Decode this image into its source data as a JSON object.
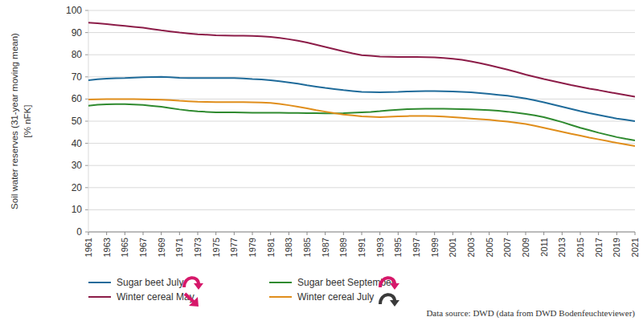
{
  "chart_data": {
    "type": "line",
    "ylabel": [
      "Soil water reserves (31-year moving mean)",
      "[% nFK]"
    ],
    "annotation": "Data source: DWD (data from DWD Bodenfeuchteviewer)",
    "x": [
      1961,
      1962,
      1963,
      1964,
      1965,
      1966,
      1967,
      1968,
      1969,
      1970,
      1971,
      1972,
      1973,
      1974,
      1975,
      1976,
      1977,
      1978,
      1979,
      1980,
      1981,
      1982,
      1983,
      1984,
      1985,
      1986,
      1987,
      1988,
      1989,
      1990,
      1991,
      1992,
      1993,
      1994,
      1995,
      1996,
      1997,
      1998,
      1999,
      2000,
      2001,
      2002,
      2003,
      2004,
      2005,
      2006,
      2007,
      2008,
      2009,
      2010,
      2011,
      2012,
      2013,
      2014,
      2015,
      2016,
      2017,
      2018,
      2019,
      2020,
      2021
    ],
    "xlim": [
      1961,
      2021
    ],
    "xticks": [
      1961,
      1963,
      1965,
      1967,
      1969,
      1971,
      1973,
      1975,
      1977,
      1979,
      1981,
      1983,
      1985,
      1987,
      1989,
      1991,
      1993,
      1995,
      1997,
      1999,
      2001,
      2003,
      2005,
      2007,
      2009,
      2011,
      2013,
      2015,
      2017,
      2019,
      2021
    ],
    "ylim": [
      0,
      100
    ],
    "yticks": [
      0,
      10,
      20,
      30,
      40,
      50,
      60,
      70,
      80,
      90,
      100
    ],
    "grid": true,
    "legend": "bottom",
    "series": [
      {
        "name": "Sugar beet July",
        "color": "#1f6b9a",
        "values": [
          68.5,
          68.9,
          69.2,
          69.4,
          69.5,
          69.7,
          69.8,
          69.9,
          70.0,
          69.8,
          69.6,
          69.5,
          69.5,
          69.5,
          69.5,
          69.5,
          69.5,
          69.3,
          69.0,
          68.8,
          68.5,
          68.0,
          67.5,
          66.9,
          66.2,
          65.6,
          65.0,
          64.5,
          64.0,
          63.6,
          63.2,
          63.1,
          63.0,
          63.1,
          63.2,
          63.4,
          63.5,
          63.6,
          63.6,
          63.5,
          63.4,
          63.2,
          63.0,
          62.7,
          62.3,
          61.9,
          61.5,
          60.9,
          60.2,
          59.4,
          58.5,
          57.5,
          56.5,
          55.5,
          54.5,
          53.6,
          52.8,
          52.0,
          51.2,
          50.6,
          50.0
        ]
      },
      {
        "name": "Winter cereal May",
        "color": "#8c1c48",
        "values": [
          94.5,
          94.2,
          93.8,
          93.4,
          93.0,
          92.6,
          92.2,
          91.6,
          91.0,
          90.5,
          90.0,
          89.6,
          89.2,
          89.0,
          88.8,
          88.7,
          88.6,
          88.6,
          88.5,
          88.3,
          88.0,
          87.6,
          87.0,
          86.3,
          85.5,
          84.5,
          83.5,
          82.5,
          81.5,
          80.6,
          79.8,
          79.5,
          79.2,
          79.1,
          79.0,
          79.0,
          79.0,
          78.9,
          78.8,
          78.5,
          78.2,
          77.7,
          77.0,
          76.2,
          75.3,
          74.3,
          73.3,
          72.2,
          71.0,
          70.0,
          69.0,
          68.1,
          67.2,
          66.3,
          65.5,
          64.7,
          64.0,
          63.2,
          62.5,
          61.8,
          61.0
        ]
      },
      {
        "name": "Sugar beet September",
        "color": "#2f8a2f",
        "values": [
          57.0,
          57.4,
          57.6,
          57.7,
          57.7,
          57.5,
          57.3,
          56.9,
          56.5,
          55.9,
          55.3,
          54.8,
          54.4,
          54.2,
          54.0,
          54.0,
          54.0,
          53.9,
          53.8,
          53.8,
          53.8,
          53.8,
          53.7,
          53.7,
          53.6,
          53.6,
          53.5,
          53.5,
          53.6,
          53.8,
          54.0,
          54.2,
          54.5,
          54.9,
          55.2,
          55.4,
          55.5,
          55.6,
          55.6,
          55.6,
          55.5,
          55.4,
          55.3,
          55.2,
          55.0,
          54.7,
          54.3,
          53.8,
          53.3,
          52.6,
          51.8,
          50.7,
          49.6,
          48.3,
          47.0,
          45.9,
          44.8,
          43.8,
          42.8,
          42.0,
          41.3
        ]
      },
      {
        "name": "Winter cereal July",
        "color": "#e08e1b",
        "values": [
          59.8,
          59.9,
          60.0,
          60.0,
          60.0,
          60.0,
          59.9,
          59.8,
          59.7,
          59.5,
          59.2,
          59.0,
          58.8,
          58.7,
          58.6,
          58.6,
          58.6,
          58.6,
          58.5,
          58.4,
          58.2,
          57.8,
          57.2,
          56.5,
          55.8,
          55.0,
          54.3,
          53.6,
          53.0,
          52.6,
          52.2,
          52.0,
          51.8,
          52.0,
          52.2,
          52.3,
          52.4,
          52.4,
          52.3,
          52.1,
          51.8,
          51.5,
          51.2,
          50.9,
          50.6,
          50.2,
          49.8,
          49.3,
          48.7,
          47.9,
          47.0,
          46.1,
          45.2,
          44.3,
          43.5,
          42.6,
          41.8,
          41.0,
          40.2,
          39.5,
          38.8
        ]
      }
    ]
  }
}
